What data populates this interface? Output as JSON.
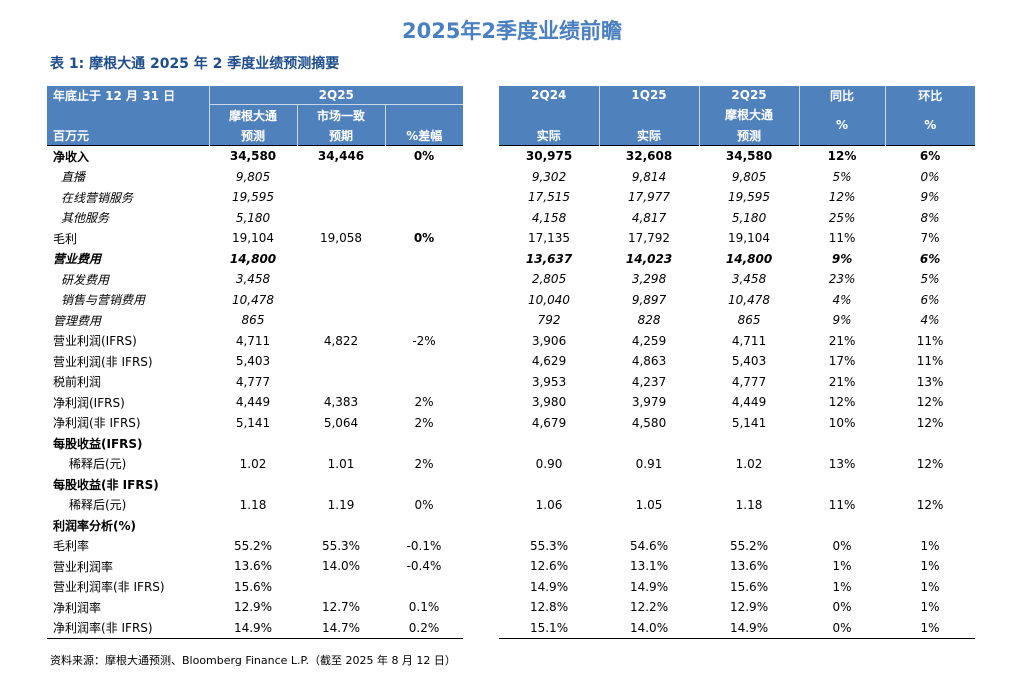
{
  "title": "2025年2季度业绩前瞻",
  "caption": "表 1: 摩根大通 2025 年 2 季度业绩预测摘要",
  "header": {
    "row1": {
      "col0": "年底止于 12 月 31 日",
      "group": "2Q25",
      "h2q24": "2Q24",
      "h1q25": "1Q25",
      "h2q25": "2Q25",
      "yoy": "同比",
      "qoq": "环比"
    },
    "row2": {
      "jpm": "摩根大通",
      "cons": "市场一致",
      "jpm_r": "摩根大通"
    },
    "row3": {
      "col0": "百万元",
      "jpm": "预测",
      "cons": "预期",
      "diff": "%差幅",
      "actual1": "实际",
      "actual2": "实际",
      "jpm_r": "预测"
    },
    "pct_yoy": "%",
    "pct_qoq": "%"
  },
  "rows": [
    {
      "label": "净收入",
      "jpm": "34,580",
      "cons": "34,446",
      "diff": "0%",
      "a": "30,975",
      "b": "32,608",
      "c": "34,580",
      "yoy": "12%",
      "qoq": "6%"
    },
    {
      "label": "直播",
      "jpm": "9,805",
      "cons": "",
      "diff": "",
      "a": "9,302",
      "b": "9,814",
      "c": "9,805",
      "yoy": "5%",
      "qoq": "0%"
    },
    {
      "label": "在线营销服务",
      "jpm": "19,595",
      "cons": "",
      "diff": "",
      "a": "17,515",
      "b": "17,977",
      "c": "19,595",
      "yoy": "12%",
      "qoq": "9%"
    },
    {
      "label": "其他服务",
      "jpm": "5,180",
      "cons": "",
      "diff": "",
      "a": "4,158",
      "b": "4,817",
      "c": "5,180",
      "yoy": "25%",
      "qoq": "8%"
    },
    {
      "label": "毛利",
      "jpm": "19,104",
      "cons": "19,058",
      "diff": "0%",
      "a": "17,135",
      "b": "17,792",
      "c": "19,104",
      "yoy": "11%",
      "qoq": "7%"
    },
    {
      "label": "营业费用",
      "jpm": "14,800",
      "cons": "",
      "diff": "",
      "a": "13,637",
      "b": "14,023",
      "c": "14,800",
      "yoy": "9%",
      "qoq": "6%"
    },
    {
      "label": "研发费用",
      "jpm": "3,458",
      "cons": "",
      "diff": "",
      "a": "2,805",
      "b": "3,298",
      "c": "3,458",
      "yoy": "23%",
      "qoq": "5%"
    },
    {
      "label": "销售与营销费用",
      "jpm": "10,478",
      "cons": "",
      "diff": "",
      "a": "10,040",
      "b": "9,897",
      "c": "10,478",
      "yoy": "4%",
      "qoq": "6%"
    },
    {
      "label": "管理费用",
      "jpm": "865",
      "cons": "",
      "diff": "",
      "a": "792",
      "b": "828",
      "c": "865",
      "yoy": "9%",
      "qoq": "4%"
    },
    {
      "label": "营业利润(IFRS)",
      "jpm": "4,711",
      "cons": "4,822",
      "diff": "-2%",
      "a": "3,906",
      "b": "4,259",
      "c": "4,711",
      "yoy": "21%",
      "qoq": "11%"
    },
    {
      "label": "营业利润(非 IFRS)",
      "jpm": "5,403",
      "cons": "",
      "diff": "",
      "a": "4,629",
      "b": "4,863",
      "c": "5,403",
      "yoy": "17%",
      "qoq": "11%"
    },
    {
      "label": "税前利润",
      "jpm": "4,777",
      "cons": "",
      "diff": "",
      "a": "3,953",
      "b": "4,237",
      "c": "4,777",
      "yoy": "21%",
      "qoq": "13%"
    },
    {
      "label": "净利润(IFRS)",
      "jpm": "4,449",
      "cons": "4,383",
      "diff": "2%",
      "a": "3,980",
      "b": "3,979",
      "c": "4,449",
      "yoy": "12%",
      "qoq": "12%"
    },
    {
      "label": "净利润(非 IFRS)",
      "jpm": "5,141",
      "cons": "5,064",
      "diff": "2%",
      "a": "4,679",
      "b": "4,580",
      "c": "5,141",
      "yoy": "10%",
      "qoq": "12%"
    },
    {
      "label": "每股收益(IFRS)",
      "jpm": "",
      "cons": "",
      "diff": "",
      "a": "",
      "b": "",
      "c": "",
      "yoy": "",
      "qoq": ""
    },
    {
      "label": "稀释后(元)",
      "jpm": "1.02",
      "cons": "1.01",
      "diff": "2%",
      "a": "0.90",
      "b": "0.91",
      "c": "1.02",
      "yoy": "13%",
      "qoq": "12%"
    },
    {
      "label": "每股收益(非 IFRS)",
      "jpm": "",
      "cons": "",
      "diff": "",
      "a": "",
      "b": "",
      "c": "",
      "yoy": "",
      "qoq": ""
    },
    {
      "label": "稀释后(元)",
      "jpm": "1.18",
      "cons": "1.19",
      "diff": "0%",
      "a": "1.06",
      "b": "1.05",
      "c": "1.18",
      "yoy": "11%",
      "qoq": "12%"
    },
    {
      "label": "利润率分析(%)",
      "jpm": "",
      "cons": "",
      "diff": "",
      "a": "",
      "b": "",
      "c": "",
      "yoy": "",
      "qoq": ""
    },
    {
      "label": "毛利率",
      "jpm": "55.2%",
      "cons": "55.3%",
      "diff": "-0.1%",
      "a": "55.3%",
      "b": "54.6%",
      "c": "55.2%",
      "yoy": "0%",
      "qoq": "1%"
    },
    {
      "label": "营业利润率",
      "jpm": "13.6%",
      "cons": "14.0%",
      "diff": "-0.4%",
      "a": "12.6%",
      "b": "13.1%",
      "c": "13.6%",
      "yoy": "1%",
      "qoq": "1%"
    },
    {
      "label": "营业利润率(非 IFRS)",
      "jpm": "15.6%",
      "cons": "",
      "diff": "",
      "a": "14.9%",
      "b": "14.9%",
      "c": "15.6%",
      "yoy": "1%",
      "qoq": "1%"
    },
    {
      "label": "净利润率",
      "jpm": "12.9%",
      "cons": "12.7%",
      "diff": "0.1%",
      "a": "12.8%",
      "b": "12.2%",
      "c": "12.9%",
      "yoy": "0%",
      "qoq": "1%"
    },
    {
      "label": "净利润率(非 IFRS)",
      "jpm": "14.9%",
      "cons": "14.7%",
      "diff": "0.2%",
      "a": "15.1%",
      "b": "14.0%",
      "c": "14.9%",
      "yoy": "0%",
      "qoq": "1%"
    }
  ],
  "source": "资料来源：摩根大通预测、Bloomberg Finance L.P.（截至 2025 年 8 月 12 日）",
  "colors": {
    "header_bg": "#4f81bd",
    "title": "#4a7fc1",
    "caption": "#1f4e8c"
  }
}
